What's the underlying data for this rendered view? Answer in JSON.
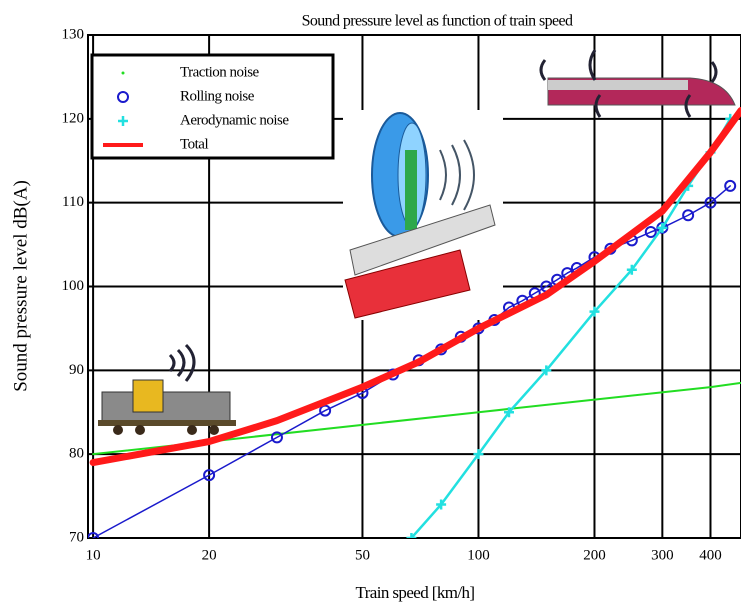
{
  "chart_data": {
    "type": "line",
    "title": "Sound pressure level as function of train speed",
    "x_label": "Train speed [km/h]",
    "y_label": "Sound pressure level dB(A)",
    "log_x": true,
    "grid": true,
    "legend": "upper left",
    "xlim": [
      9.7,
      480
    ],
    "ylim": [
      70,
      130
    ],
    "xticks": [
      10,
      20,
      50,
      100,
      200,
      300,
      400
    ],
    "yticks": [
      70,
      80,
      90,
      100,
      110,
      120,
      130
    ],
    "series": [
      {
        "name": "Traction noise",
        "color": "#22dd22",
        "marker": "dot",
        "width": 2,
        "x": [
          10,
          20,
          50,
          100,
          200,
          400,
          480
        ],
        "values": [
          80,
          81.5,
          83.5,
          85,
          86.5,
          88,
          88.5
        ]
      },
      {
        "name": "Rolling noise",
        "color": "#1a1acc",
        "marker": "circle",
        "width": 1.5,
        "x": [
          10,
          20,
          30,
          40,
          50,
          60,
          70,
          80,
          90,
          100,
          110,
          120,
          130,
          140,
          150,
          160,
          170,
          180,
          200,
          220,
          250,
          280,
          300,
          350,
          400,
          450
        ],
        "values": [
          70,
          77.5,
          82,
          85.2,
          87.3,
          89.5,
          91.2,
          92.5,
          94,
          95,
          96,
          97.5,
          98.3,
          99.2,
          100,
          100.8,
          101.6,
          102.2,
          103.5,
          104.5,
          105.5,
          106.5,
          107,
          108.5,
          110,
          112
        ]
      },
      {
        "name": "Aerodynamic noise",
        "color": "#22e0e0",
        "marker": "plus",
        "width": 2.5,
        "x": [
          67,
          80,
          100,
          120,
          150,
          200,
          250,
          300,
          350,
          400,
          450
        ],
        "values": [
          70,
          74,
          80,
          85,
          90,
          97,
          102,
          107,
          112,
          116,
          120
        ]
      },
      {
        "name": "Total",
        "color": "#ff1a1a",
        "marker": "none",
        "width": 7,
        "x": [
          10,
          20,
          30,
          50,
          70,
          100,
          150,
          200,
          300,
          400,
          480
        ],
        "values": [
          79,
          81.5,
          84,
          88,
          91,
          95,
          99,
          103,
          109,
          116,
          121
        ]
      }
    ]
  }
}
